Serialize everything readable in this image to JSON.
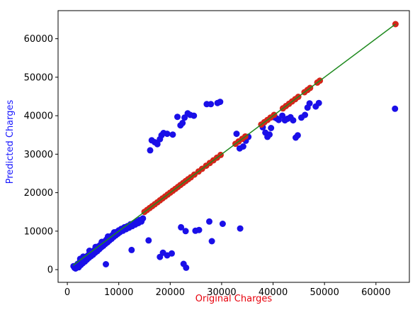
{
  "chart_data": {
    "type": "scatter",
    "title": "",
    "xlabel": "Original Charges",
    "ylabel": "Predicted Charges",
    "xlabel_color": "#e8000b",
    "ylabel_color": "#1a1aff",
    "xlim": [
      -1800,
      66500
    ],
    "ylim": [
      -3300,
      67300
    ],
    "xticks": [
      0,
      10000,
      20000,
      30000,
      40000,
      50000,
      60000
    ],
    "yticks": [
      0,
      10000,
      20000,
      30000,
      40000,
      50000,
      60000
    ],
    "grid": false,
    "series": [
      {
        "marker_color": "#1a0fe8",
        "points": [
          [
            1200,
            900
          ],
          [
            1400,
            500
          ],
          [
            1600,
            300
          ],
          [
            1800,
            1100
          ],
          [
            2000,
            1500
          ],
          [
            2200,
            600
          ],
          [
            2400,
            1900
          ],
          [
            2600,
            1200
          ],
          [
            2800,
            2300
          ],
          [
            3000,
            1700
          ],
          [
            3200,
            2800
          ],
          [
            3400,
            2100
          ],
          [
            3600,
            3300
          ],
          [
            3800,
            2600
          ],
          [
            4000,
            3700
          ],
          [
            4200,
            3100
          ],
          [
            4400,
            4100
          ],
          [
            4600,
            3500
          ],
          [
            4800,
            4600
          ],
          [
            5000,
            3900
          ],
          [
            5200,
            5000
          ],
          [
            5400,
            4400
          ],
          [
            5600,
            5500
          ],
          [
            5800,
            4800
          ],
          [
            6000,
            6000
          ],
          [
            6200,
            5300
          ],
          [
            6400,
            6400
          ],
          [
            6600,
            5800
          ],
          [
            6800,
            6900
          ],
          [
            7000,
            6200
          ],
          [
            7200,
            7300
          ],
          [
            7400,
            6700
          ],
          [
            7600,
            7800
          ],
          [
            7800,
            7100
          ],
          [
            8000,
            8300
          ],
          [
            8200,
            7600
          ],
          [
            8400,
            8600
          ],
          [
            8600,
            8000
          ],
          [
            8800,
            9000
          ],
          [
            9000,
            8500
          ],
          [
            9200,
            9400
          ],
          [
            9400,
            8900
          ],
          [
            9600,
            9800
          ],
          [
            9800,
            9300
          ],
          [
            10000,
            10200
          ],
          [
            10200,
            9700
          ],
          [
            10500,
            10600
          ],
          [
            10800,
            10100
          ],
          [
            11100,
            11000
          ],
          [
            11400,
            10500
          ],
          [
            11700,
            11300
          ],
          [
            12000,
            10900
          ],
          [
            12300,
            11800
          ],
          [
            12600,
            11300
          ],
          [
            12900,
            12100
          ],
          [
            13200,
            11700
          ],
          [
            13500,
            12500
          ],
          [
            13800,
            12100
          ],
          [
            14100,
            12900
          ],
          [
            14400,
            12500
          ],
          [
            14700,
            13300
          ],
          [
            2500,
            2800
          ],
          [
            3100,
            3400
          ],
          [
            4300,
            4900
          ],
          [
            5500,
            5900
          ],
          [
            6700,
            7200
          ],
          [
            7900,
            8600
          ],
          [
            9100,
            9700
          ],
          [
            3700,
            3000
          ],
          [
            5100,
            4200
          ],
          [
            6300,
            5500
          ],
          [
            7500,
            1400
          ],
          [
            12500,
            5100
          ],
          [
            15800,
            7600
          ],
          [
            18000,
            3300
          ],
          [
            18600,
            4400
          ],
          [
            19400,
            3700
          ],
          [
            20300,
            4200
          ],
          [
            22100,
            11000
          ],
          [
            23000,
            10000
          ],
          [
            22600,
            1500
          ],
          [
            23100,
            500
          ],
          [
            24900,
            10100
          ],
          [
            25600,
            10300
          ],
          [
            27600,
            12500
          ],
          [
            28100,
            7400
          ],
          [
            30200,
            11900
          ],
          [
            33600,
            10700
          ],
          [
            16100,
            31000
          ],
          [
            16400,
            33600
          ],
          [
            17000,
            33100
          ],
          [
            17500,
            32600
          ],
          [
            18000,
            33900
          ],
          [
            18300,
            34900
          ],
          [
            18700,
            35500
          ],
          [
            19400,
            35300
          ],
          [
            20500,
            35100
          ],
          [
            21400,
            39700
          ],
          [
            22000,
            37500
          ],
          [
            22400,
            38100
          ],
          [
            22800,
            39500
          ],
          [
            23400,
            40600
          ],
          [
            23900,
            40200
          ],
          [
            24600,
            40000
          ],
          [
            27100,
            43000
          ],
          [
            27900,
            43000
          ],
          [
            29200,
            43300
          ],
          [
            29700,
            43600
          ],
          [
            32900,
            35300
          ],
          [
            33500,
            31500
          ],
          [
            34200,
            32000
          ],
          [
            34700,
            33500
          ],
          [
            35200,
            34500
          ],
          [
            38000,
            37000
          ],
          [
            38500,
            35600
          ],
          [
            38900,
            34500
          ],
          [
            39300,
            35100
          ],
          [
            39600,
            36800
          ],
          [
            40200,
            39600
          ],
          [
            40700,
            39300
          ],
          [
            41100,
            38900
          ],
          [
            41800,
            40000
          ],
          [
            42300,
            38800
          ],
          [
            42800,
            39200
          ],
          [
            43400,
            39600
          ],
          [
            43900,
            38800
          ],
          [
            44400,
            34300
          ],
          [
            44800,
            34900
          ],
          [
            45500,
            39500
          ],
          [
            46200,
            40200
          ],
          [
            46700,
            42100
          ],
          [
            47100,
            43200
          ],
          [
            48300,
            42400
          ],
          [
            48900,
            43300
          ],
          [
            63700,
            41800
          ]
        ]
      },
      {
        "marker_color": "#d4261a",
        "points": [
          [
            15000,
            15000
          ],
          [
            15500,
            15500
          ],
          [
            16000,
            16000
          ],
          [
            16500,
            16500
          ],
          [
            17000,
            17000
          ],
          [
            17500,
            17500
          ],
          [
            18000,
            18000
          ],
          [
            18500,
            18500
          ],
          [
            19000,
            19000
          ],
          [
            19500,
            19500
          ],
          [
            20000,
            20000
          ],
          [
            20500,
            20500
          ],
          [
            21000,
            21000
          ],
          [
            21500,
            21500
          ],
          [
            22000,
            22000
          ],
          [
            22500,
            22500
          ],
          [
            23000,
            23000
          ],
          [
            23500,
            23500
          ],
          [
            24000,
            24000
          ],
          [
            24700,
            24700
          ],
          [
            25500,
            25500
          ],
          [
            26200,
            26200
          ],
          [
            27000,
            27000
          ],
          [
            27700,
            27700
          ],
          [
            28400,
            28400
          ],
          [
            29100,
            29100
          ],
          [
            29800,
            29800
          ],
          [
            32700,
            32700
          ],
          [
            33300,
            33300
          ],
          [
            34000,
            34000
          ],
          [
            34600,
            34600
          ],
          [
            37700,
            37700
          ],
          [
            38300,
            38300
          ],
          [
            38900,
            38900
          ],
          [
            39500,
            39500
          ],
          [
            40200,
            40200
          ],
          [
            41900,
            41900
          ],
          [
            42500,
            42500
          ],
          [
            43100,
            43100
          ],
          [
            43700,
            43700
          ],
          [
            44300,
            44300
          ],
          [
            44900,
            44900
          ],
          [
            46100,
            46100
          ],
          [
            46700,
            46700
          ],
          [
            47200,
            47200
          ],
          [
            48600,
            48600
          ],
          [
            49100,
            49100
          ],
          [
            63800,
            63800
          ]
        ]
      }
    ],
    "fit_line": {
      "color": "#1f8a1f",
      "x": [
        1100,
        63800
      ],
      "y": [
        1100,
        63800
      ]
    }
  }
}
